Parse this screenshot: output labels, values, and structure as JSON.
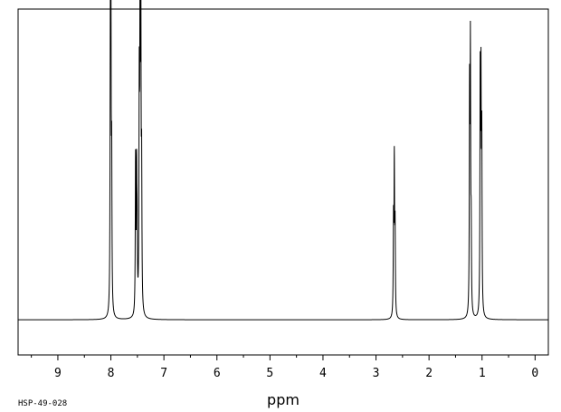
{
  "chart_data": {
    "type": "line",
    "title": "",
    "xlabel": "ppm",
    "ylabel": "",
    "xlim": [
      9.75,
      -0.25
    ],
    "ylim": [
      -0.12,
      1.06
    ],
    "baseline": 0,
    "x_ticks": [
      9,
      8,
      7,
      6,
      5,
      4,
      3,
      2,
      1,
      0
    ],
    "x_tick_labels": [
      "9",
      "8",
      "7",
      "6",
      "5",
      "4",
      "3",
      "2",
      "1",
      "0"
    ],
    "grid": false,
    "legend": "none",
    "peaks": [
      {
        "x": 8.01,
        "y": 0.89
      },
      {
        "x": 8.0,
        "y": 1.0
      },
      {
        "x": 7.985,
        "y": 0.49
      },
      {
        "x": 7.535,
        "y": 0.52
      },
      {
        "x": 7.515,
        "y": 0.45
      },
      {
        "x": 7.505,
        "y": 0.24
      },
      {
        "x": 7.465,
        "y": 0.73
      },
      {
        "x": 7.45,
        "y": 1.02
      },
      {
        "x": 7.435,
        "y": 0.98
      },
      {
        "x": 7.42,
        "y": 0.46
      },
      {
        "x": 2.67,
        "y": 0.31
      },
      {
        "x": 2.655,
        "y": 0.51
      },
      {
        "x": 2.64,
        "y": 0.29
      },
      {
        "x": 1.235,
        "y": 0.74
      },
      {
        "x": 1.22,
        "y": 0.88
      },
      {
        "x": 1.205,
        "y": 0.26
      },
      {
        "x": 1.035,
        "y": 0.79
      },
      {
        "x": 1.02,
        "y": 0.74
      },
      {
        "x": 1.005,
        "y": 0.58
      }
    ],
    "peak_width_ppm": 0.006,
    "line_color": "#000000"
  },
  "sample_code": "HSP-49-028"
}
